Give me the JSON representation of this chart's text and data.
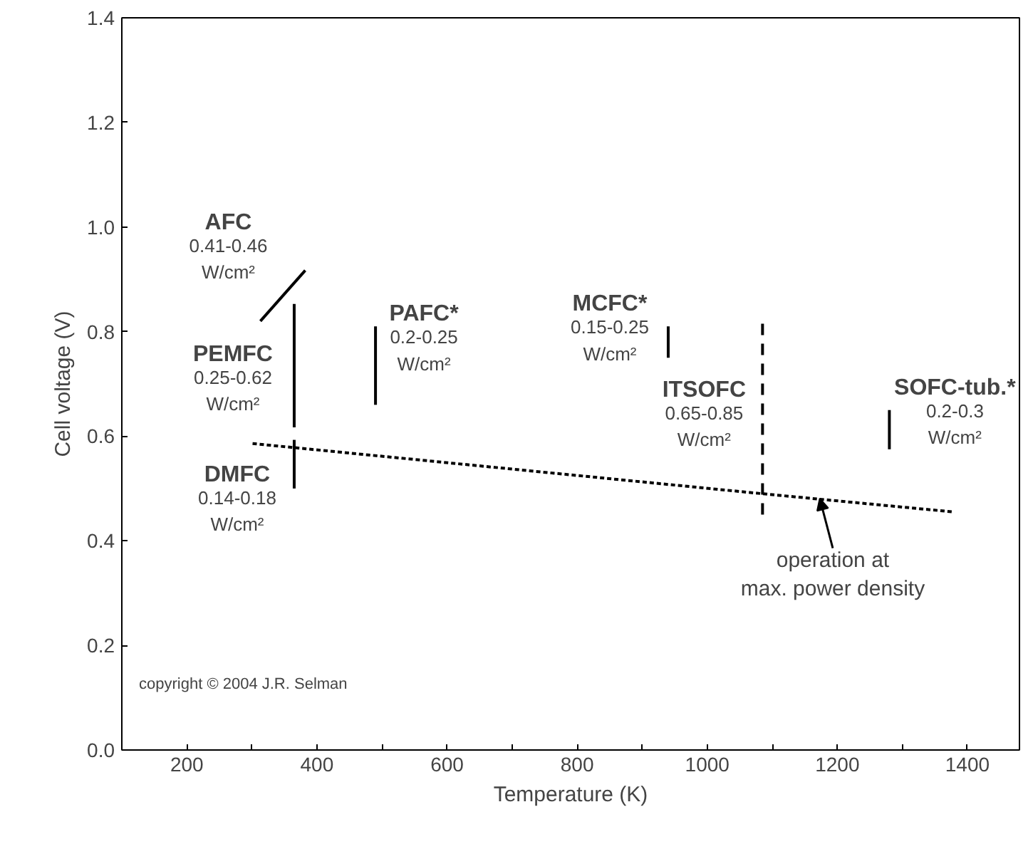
{
  "chart_data": {
    "type": "line",
    "xlabel": "Temperature (K)",
    "ylabel": "Cell voltage (V)",
    "xlim": [
      100,
      1480
    ],
    "ylim": [
      0,
      1.4
    ],
    "xticks": [
      200,
      {
        "value": 300,
        "label": null
      },
      400,
      {
        "value": 500,
        "label": null
      },
      600,
      {
        "value": 700,
        "label": null
      },
      800,
      {
        "value": 900,
        "label": null
      },
      1000,
      {
        "value": 1100,
        "label": null
      },
      1200,
      {
        "value": 1300,
        "label": null
      },
      1400
    ],
    "yticks": [
      {
        "value": 0,
        "label": "0.0"
      },
      0.2,
      0.4,
      0.6,
      0.8,
      {
        "value": 1,
        "label": "1.0"
      },
      1.2,
      1.4
    ],
    "grid": false,
    "marker": "none",
    "series": [
      {
        "color": "#000000",
        "x": [
          313,
          382
        ],
        "values": [
          0.82,
          0.917
        ],
        "line_style": "solid"
      },
      {
        "color": "#000000",
        "x": [
          365,
          365
        ],
        "values": [
          0.617,
          0.853
        ],
        "line_style": "solid"
      },
      {
        "color": "#000000",
        "x": [
          365,
          365
        ],
        "values": [
          0.5,
          0.593
        ],
        "line_style": "solid"
      },
      {
        "color": "#000000",
        "x": [
          490,
          490
        ],
        "values": [
          0.66,
          0.81
        ],
        "line_style": "solid"
      },
      {
        "color": "#000000",
        "x": [
          940,
          940
        ],
        "values": [
          0.75,
          0.81
        ],
        "line_style": "solid"
      },
      {
        "color": "#000000",
        "x": [
          1085,
          1085
        ],
        "values": [
          0.45,
          0.82
        ],
        "line_style": "dashed"
      },
      {
        "color": "#000000",
        "x": [
          1280,
          1280
        ],
        "values": [
          0.575,
          0.65
        ],
        "line_style": "solid"
      },
      {
        "color": "#000000",
        "x": [
          301,
          1085,
          1380
        ],
        "values": [
          0.586,
          0.49,
          0.455
        ],
        "line_style": "dotted"
      }
    ],
    "annotations": [
      "AFC\n0.41-0.46\nW/cm²",
      "PEMFC\n0.25-0.62\nW/cm²",
      "DMFC\n0.14-0.18\nW/cm²",
      "PAFC*\n0.2-0.25\nW/cm²",
      "MCFC*\n0.15-0.25\nW/cm²",
      "ITSOFC\n0.65-0.85\nW/cm²",
      "SOFC-tub.*\n0.2-0.3\nW/cm²",
      {
        "text": "operation at\nmax. power density",
        "x": 1173,
        "y": 0.486
      },
      "copyright © 2004 J.R. Selman"
    ]
  }
}
